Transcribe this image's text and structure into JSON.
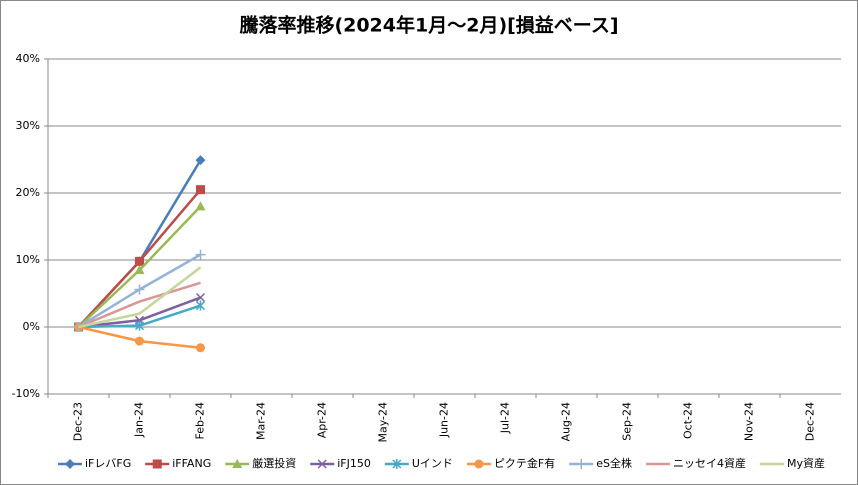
{
  "chart_data": {
    "type": "line",
    "title": "騰落率推移(2024年1月～2月)[損益ベース]",
    "categories": [
      "Dec-23",
      "Jan-24",
      "Feb-24",
      "Mar-24",
      "Apr-24",
      "May-24",
      "Jun-24",
      "Jul-24",
      "Aug-24",
      "Sep-24",
      "Oct-24",
      "Nov-24",
      "Dec-24"
    ],
    "series": [
      {
        "name": "iFレバFG",
        "color": "#4a7ebb",
        "marker": "diamond",
        "values": [
          0,
          9.8,
          24.9,
          null,
          null,
          null,
          null,
          null,
          null,
          null,
          null,
          null,
          null
        ]
      },
      {
        "name": "iFFANG",
        "color": "#be4b48",
        "marker": "square",
        "values": [
          0,
          9.8,
          20.5,
          null,
          null,
          null,
          null,
          null,
          null,
          null,
          null,
          null,
          null
        ]
      },
      {
        "name": "厳選投資",
        "color": "#98b954",
        "marker": "triangle",
        "values": [
          0,
          8.5,
          18.0,
          null,
          null,
          null,
          null,
          null,
          null,
          null,
          null,
          null,
          null
        ]
      },
      {
        "name": "iFJ150",
        "color": "#7d60a0",
        "marker": "x",
        "values": [
          0,
          1.0,
          4.4,
          null,
          null,
          null,
          null,
          null,
          null,
          null,
          null,
          null,
          null
        ]
      },
      {
        "name": "Uインド",
        "color": "#46aac5",
        "marker": "star",
        "values": [
          0,
          0.2,
          3.2,
          null,
          null,
          null,
          null,
          null,
          null,
          null,
          null,
          null,
          null
        ]
      },
      {
        "name": "ピクテ金F有",
        "color": "#f79646",
        "marker": "circle",
        "values": [
          0,
          -2.1,
          -3.1,
          null,
          null,
          null,
          null,
          null,
          null,
          null,
          null,
          null,
          null
        ]
      },
      {
        "name": "eS全株",
        "color": "#95b3d7",
        "marker": "plus",
        "values": [
          0,
          5.6,
          10.8,
          null,
          null,
          null,
          null,
          null,
          null,
          null,
          null,
          null,
          null
        ]
      },
      {
        "name": "ニッセイ4資産",
        "color": "#d99694",
        "marker": "none",
        "values": [
          0,
          3.8,
          6.6,
          null,
          null,
          null,
          null,
          null,
          null,
          null,
          null,
          null,
          null
        ]
      },
      {
        "name": "My資産",
        "color": "#c3d69b",
        "marker": "none",
        "values": [
          0,
          2.0,
          8.9,
          null,
          null,
          null,
          null,
          null,
          null,
          null,
          null,
          null,
          null
        ]
      }
    ],
    "ylim": [
      -10,
      40
    ],
    "yticks": [
      {
        "value": -10,
        "label": "-10%"
      },
      {
        "value": 0,
        "label": "0%"
      },
      {
        "value": 10,
        "label": "10%"
      },
      {
        "value": 20,
        "label": "20%"
      },
      {
        "value": 30,
        "label": "30%"
      },
      {
        "value": 40,
        "label": "40%"
      }
    ],
    "grid": true,
    "legend": "bottom"
  }
}
